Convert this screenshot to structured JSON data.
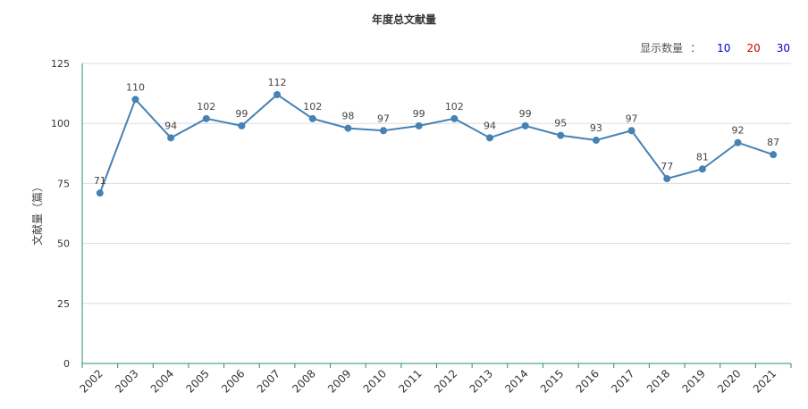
{
  "chart_data": {
    "type": "line",
    "title": "年度总文献量",
    "xlabel": "",
    "ylabel": "文献量（篇）",
    "ylim": [
      0,
      125
    ],
    "yticks": [
      0,
      25,
      50,
      75,
      100,
      125
    ],
    "grid": true,
    "categories": [
      "2002",
      "2003",
      "2004",
      "2005",
      "2006",
      "2007",
      "2008",
      "2009",
      "2010",
      "2011",
      "2012",
      "2013",
      "2014",
      "2015",
      "2016",
      "2017",
      "2018",
      "2019",
      "2020",
      "2021"
    ],
    "values": [
      71,
      110,
      94,
      102,
      99,
      112,
      102,
      98,
      97,
      99,
      102,
      94,
      99,
      95,
      93,
      97,
      77,
      81,
      92,
      87
    ],
    "colors": {
      "line": "#4682b4",
      "axis": "#2e8b78",
      "grid": "#dddddd"
    }
  },
  "display_count": {
    "label": "显示数量",
    "colon": "：",
    "options": [
      {
        "label": "10",
        "color": "#0000cc"
      },
      {
        "label": "20",
        "color": "#cc0000"
      },
      {
        "label": "30",
        "color": "#0000cc"
      }
    ]
  }
}
